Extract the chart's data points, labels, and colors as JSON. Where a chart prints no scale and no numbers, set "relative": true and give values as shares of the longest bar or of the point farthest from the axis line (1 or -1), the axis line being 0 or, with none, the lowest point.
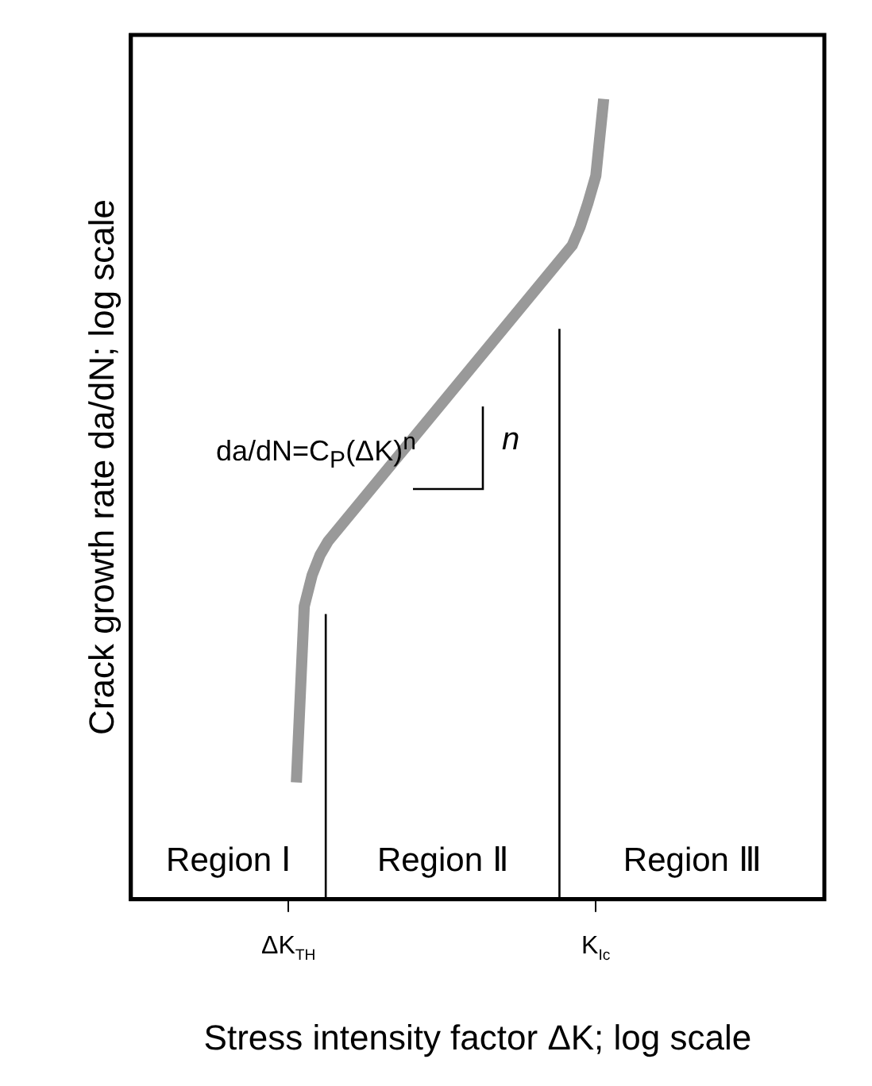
{
  "chart_data": {
    "type": "line",
    "relative": true,
    "xlabel": "Stress intensity factor ΔK; log scale",
    "ylabel": "Crack growth rate da/dN; log scale",
    "categories": [
      null,
      null,
      null,
      null,
      null,
      null,
      null,
      null,
      null,
      null,
      null,
      null,
      null,
      null,
      null,
      null,
      null,
      null,
      null,
      null,
      "ΔK$_{TH}$",
      null,
      null,
      null,
      null,
      null,
      null,
      null,
      null,
      null,
      null,
      null,
      null,
      null,
      null,
      null,
      null,
      null,
      null,
      null,
      null,
      null,
      null,
      null,
      null,
      null,
      null,
      null,
      null,
      null,
      null,
      null,
      null,
      null,
      null,
      null,
      null,
      null,
      null,
      "K$_{Ic}$",
      null,
      null,
      null,
      null,
      null,
      null,
      null,
      null,
      null,
      null,
      null,
      null,
      null,
      null,
      null,
      null,
      null,
      null,
      null,
      null,
      null,
      null,
      null,
      null,
      null,
      null,
      null,
      null,
      null
    ],
    "series": [
      {
        "color": "#999999",
        "values": [
          null,
          null,
          null,
          null,
          null,
          null,
          null,
          null,
          null,
          null,
          null,
          null,
          null,
          null,
          null,
          null,
          null,
          null,
          null,
          null,
          null,
          0.146,
          0.366,
          0.405,
          0.43,
          0.447,
          null,
          null,
          null,
          null,
          null,
          null,
          null,
          null,
          null,
          null,
          null,
          null,
          null,
          null,
          null,
          null,
          null,
          null,
          null,
          null,
          null,
          null,
          null,
          null,
          null,
          null,
          null,
          null,
          null,
          null,
          0.817,
          0.84,
          0.87,
          0.904,
          1,
          null,
          null,
          null,
          null,
          null,
          null,
          null,
          null,
          null,
          null,
          null,
          null,
          null,
          null,
          null,
          null,
          null,
          null,
          null,
          null,
          null,
          null,
          null,
          null,
          null,
          null,
          null,
          null
        ]
      }
    ],
    "grid": false,
    "legend": false,
    "marker": "none",
    "line_style": "solid",
    "annotations": [
      "da/dN=C$_{P}$(ΔK)$^{n}$",
      "n",
      "Region Ⅰ",
      "Region Ⅱ",
      "Region Ⅲ"
    ]
  }
}
